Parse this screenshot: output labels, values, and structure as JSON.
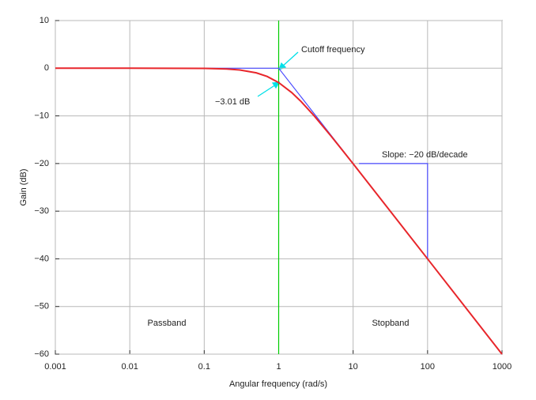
{
  "chart_data": {
    "type": "line",
    "xlabel": "Angular frequency (rad/s)",
    "ylabel": "Gain (dB)",
    "xscale": "log",
    "grid": true,
    "xlim": [
      0.001,
      1000
    ],
    "xticks": [
      0.001,
      0.01,
      0.1,
      1,
      10,
      100,
      1000
    ],
    "ylim": [
      -60,
      10
    ],
    "yticks": [
      {
        "value": -60,
        "label": "−60"
      },
      {
        "value": -50,
        "label": "−50"
      },
      {
        "value": -40,
        "label": "−40"
      },
      {
        "value": -30,
        "label": "−30"
      },
      {
        "value": -20,
        "label": "−20"
      },
      {
        "value": -10,
        "label": "−10"
      },
      0,
      10
    ],
    "series": [
      {
        "color": "#00cc00",
        "x": [
          1,
          1
        ],
        "values": [
          10,
          -60
        ]
      },
      {
        "color": "#4a4aff",
        "x": [
          0.001,
          1,
          1000
        ],
        "values": [
          0,
          0,
          -60
        ]
      },
      {
        "color": "#4a4aff",
        "x": [
          12,
          100,
          100
        ],
        "values": [
          -20,
          -20,
          -40
        ]
      },
      {
        "color": "#e8262b",
        "x": [
          0.001,
          0.01,
          0.1,
          0.2,
          0.3,
          0.5,
          0.7,
          1,
          1.5,
          2,
          3,
          5,
          7,
          10,
          100,
          1000
        ],
        "values": [
          0,
          0,
          -0.04,
          -0.17,
          -0.37,
          -0.97,
          -1.73,
          -3.01,
          -5.12,
          -6.99,
          -10,
          -14.15,
          -17,
          -20.04,
          -40,
          -60
        ]
      }
    ],
    "annotations": [
      "Cutoff frequency",
      "−3.01 dB",
      "Slope: −20 dB/decade",
      "Passband",
      "Stopband"
    ]
  }
}
